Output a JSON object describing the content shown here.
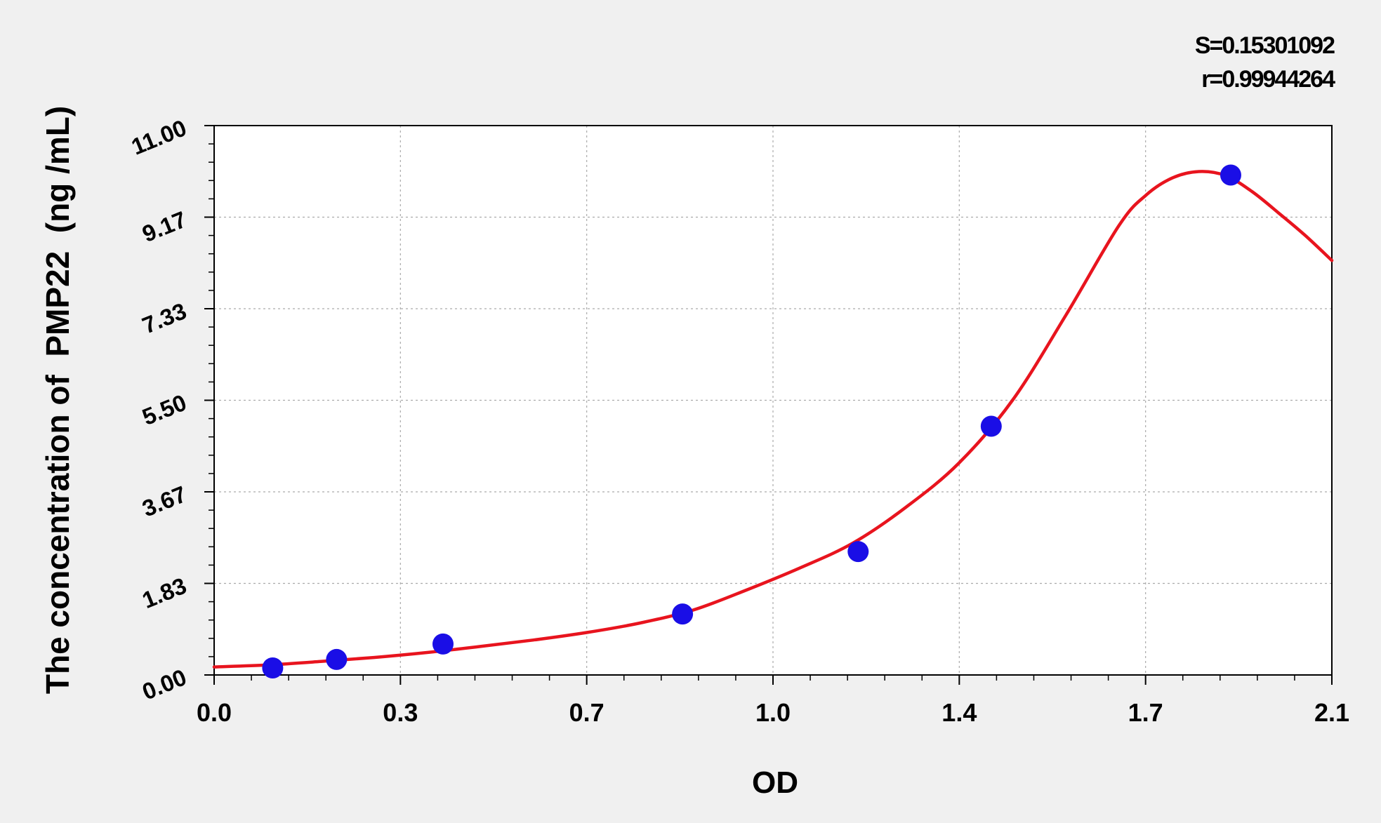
{
  "chart_data": {
    "type": "scatter",
    "title": "",
    "xlabel": "OD",
    "ylabel": "The concentration of  PMP22  (ng /mL)",
    "xlim": [
      0,
      2.1
    ],
    "ylim": [
      0,
      11
    ],
    "x_ticks": [
      "0.0",
      "0.3",
      "0.7",
      "1.0",
      "1.4",
      "1.7",
      "2.1"
    ],
    "y_ticks": [
      "0.00",
      "1.83",
      "3.67",
      "5.50",
      "7.33",
      "9.17",
      "11.00"
    ],
    "grid": true,
    "stats": {
      "s": "S=0.15301092",
      "r": "r=0.99944264"
    },
    "colors": {
      "points": "#1a0ee6",
      "curve": "#e8141e",
      "grid": "#aaaaaa",
      "background": "#f0f0f0",
      "plot_background": "#ffffff"
    },
    "series": [
      {
        "type": "scatter",
        "x": [
          0.11,
          0.23,
          0.43,
          0.88,
          1.21,
          1.46,
          1.91
        ],
        "y": [
          0.14,
          0.31,
          0.62,
          1.22,
          2.47,
          4.98,
          10.01
        ]
      },
      {
        "type": "line",
        "x": [
          0.0,
          0.1,
          0.2,
          0.3,
          0.4,
          0.5,
          0.6,
          0.7,
          0.8,
          0.9,
          1.0,
          1.1,
          1.2,
          1.3,
          1.4,
          1.5,
          1.6,
          1.7,
          1.75,
          1.8,
          1.85,
          1.9,
          1.95,
          2.0,
          2.05,
          2.1
        ],
        "y": [
          0.16,
          0.2,
          0.27,
          0.35,
          0.45,
          0.57,
          0.7,
          0.85,
          1.04,
          1.3,
          1.7,
          2.14,
          2.64,
          3.36,
          4.25,
          5.5,
          7.2,
          9.0,
          9.6,
          9.95,
          10.08,
          10.0,
          9.68,
          9.25,
          8.8,
          8.3
        ]
      }
    ]
  }
}
